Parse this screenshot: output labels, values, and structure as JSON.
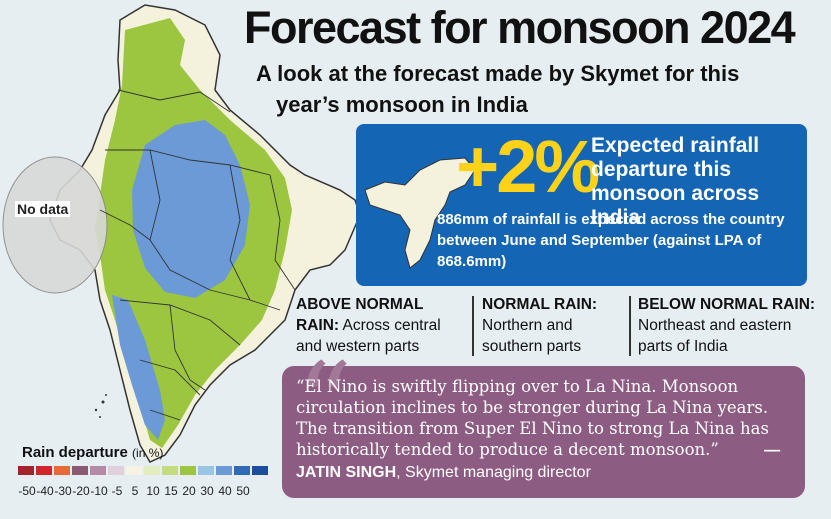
{
  "title": "Forecast for monsoon 2024",
  "subtitle_line1": "A look at the forecast made by Skymet for this",
  "subtitle_line2": "year’s monsoon in India",
  "forecast": {
    "percent": "+2%",
    "expected_label": "Expected rainfall departure this monsoon across India",
    "detail": "886mm of rainfall is expected across the country between June and September (against LPA of 868.6mm)"
  },
  "categories": [
    {
      "heading": "ABOVE NORMAL RAIN:",
      "text": "Across central and western parts"
    },
    {
      "heading": "NORMAL RAIN:",
      "text": "Northern and southern parts"
    },
    {
      "heading": "BELOW NORMAL RAIN:",
      "text": "Northeast and eastern parts of India"
    }
  ],
  "quote": {
    "text": "“El Nino is swiftly flipping over to La Nina. Monsoon circulation inclines to be stronger during La Nina years. The transition from Super El Nino to strong La Nina has historically tended to produce a decent monsoon.”",
    "author_name": "— JATIN SINGH",
    "author_title": ", Skymet managing director"
  },
  "map": {
    "no_data_label": "No data",
    "region_colors": {
      "above_normal": "#6b9ad6",
      "normal": "#9cc640",
      "below_normal": "#f4f1dc",
      "no_data": "#d8d8d8"
    }
  },
  "legend": {
    "title": "Rain departure",
    "unit": "(in %)",
    "labels": [
      "-50",
      "-40",
      "-30",
      "-20",
      "-10",
      "-5",
      "5",
      "10",
      "15",
      "20",
      "30",
      "40",
      "50"
    ],
    "colors": [
      "#a4232b",
      "#d0262b",
      "#e86a3a",
      "#8a5a72",
      "#b48aa6",
      "#e0d0dc",
      "#f7f3e2",
      "#e2ecc0",
      "#c4dc7c",
      "#9cc640",
      "#98c6e4",
      "#6b9ad6",
      "#2f69b8",
      "#1b4f9c"
    ]
  },
  "accent_colors": {
    "blue_box": "#1565b5",
    "percent": "#ffd21a",
    "quote_box": "#8d5c82"
  }
}
